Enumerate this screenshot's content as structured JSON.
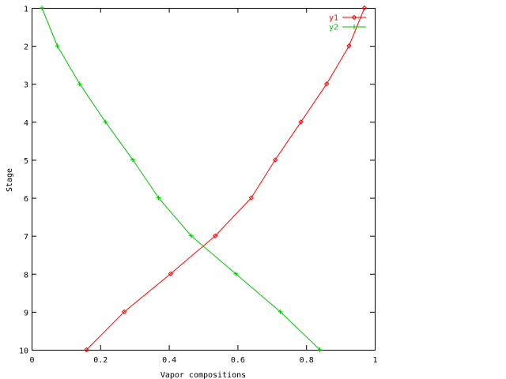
{
  "chart_data": {
    "type": "line",
    "title": "",
    "xlabel": "Vapor compositions",
    "ylabel": "Stage",
    "xlim": [
      0,
      1
    ],
    "ylim": [
      1,
      10
    ],
    "y_inverted": true,
    "grid": false,
    "legend_position": "top-right",
    "x_ticks": [
      "0",
      "0.2",
      "0.4",
      "0.6",
      "0.8",
      "1"
    ],
    "y_ticks": [
      "1",
      "2",
      "3",
      "4",
      "5",
      "6",
      "7",
      "8",
      "9",
      "10"
    ],
    "series": [
      {
        "name": "y1",
        "color": "#ff0000",
        "marker": "diamond",
        "points": [
          {
            "x": 0.97,
            "y": 1
          },
          {
            "x": 0.925,
            "y": 2
          },
          {
            "x": 0.86,
            "y": 3
          },
          {
            "x": 0.785,
            "y": 4
          },
          {
            "x": 0.71,
            "y": 5
          },
          {
            "x": 0.64,
            "y": 6
          },
          {
            "x": 0.535,
            "y": 7
          },
          {
            "x": 0.405,
            "y": 8
          },
          {
            "x": 0.27,
            "y": 9
          },
          {
            "x": 0.16,
            "y": 10
          }
        ]
      },
      {
        "name": "y2",
        "color": "#00c000",
        "marker": "plus",
        "points": [
          {
            "x": 0.03,
            "y": 1
          },
          {
            "x": 0.075,
            "y": 2
          },
          {
            "x": 0.14,
            "y": 3
          },
          {
            "x": 0.215,
            "y": 4
          },
          {
            "x": 0.295,
            "y": 5
          },
          {
            "x": 0.37,
            "y": 6
          },
          {
            "x": 0.465,
            "y": 7
          },
          {
            "x": 0.595,
            "y": 8
          },
          {
            "x": 0.725,
            "y": 9
          },
          {
            "x": 0.84,
            "y": 10
          }
        ]
      }
    ]
  }
}
